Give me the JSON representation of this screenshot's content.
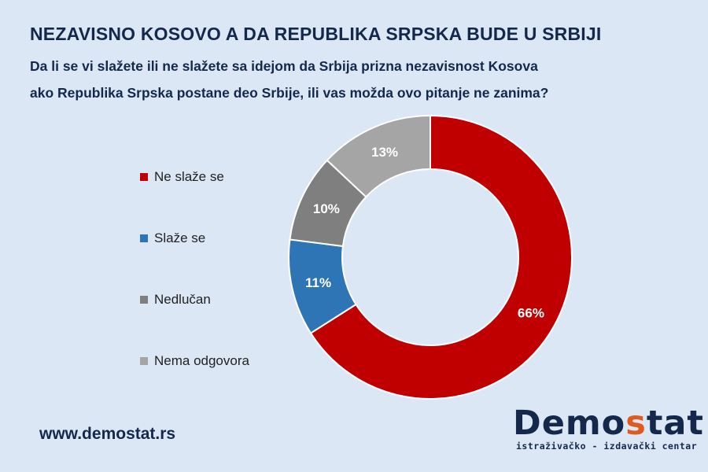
{
  "title": "NEZAVISNO KOSOVO A DA REPUBLIKA SRPSKA BUDE U SRBIJI",
  "subtitle_line1": "Da li se vi slažete ili ne slažete sa idejom da Srbija prizna nezavisnost Kosova",
  "subtitle_line2": "ako Republika Srpska postane deo Srbije, ili vas možda ovo pitanje ne zanima?",
  "chart_data": {
    "type": "pie",
    "subtype": "doughnut",
    "categories": [
      "Ne slaže se",
      "Slaže se",
      "Nedlučan",
      "Nema odgovora"
    ],
    "values": [
      66,
      11,
      10,
      13
    ],
    "data_labels": [
      "66%",
      "11%",
      "10%",
      "13%"
    ],
    "colors": [
      "#c00000",
      "#2e75b6",
      "#7f7f7f",
      "#a5a5a5"
    ],
    "legend_position": "left"
  },
  "footer": {
    "url": "www.demostat.rs"
  },
  "logo": {
    "word_part1": "Demo",
    "word_s": "s",
    "word_part2": "tat",
    "tagline": "istraživačko - izdavački centar"
  }
}
